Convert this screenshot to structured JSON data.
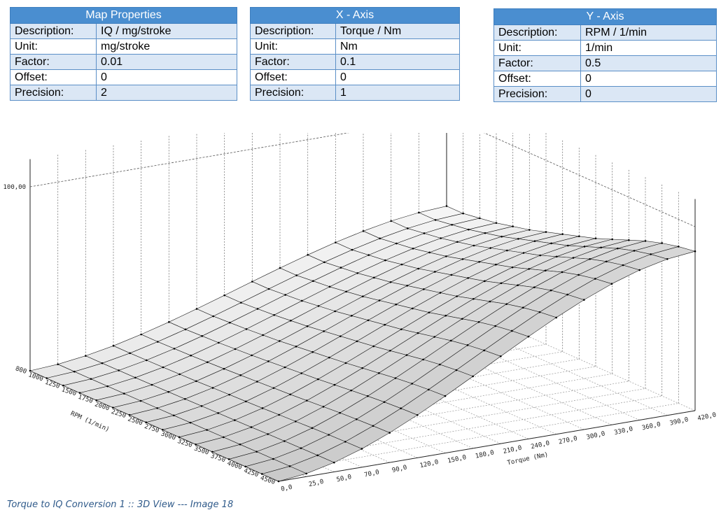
{
  "map_properties": {
    "title": "Map Properties",
    "rows": [
      {
        "key": "Description:",
        "value": "IQ /  mg/stroke"
      },
      {
        "key": "Unit:",
        "value": "mg/stroke"
      },
      {
        "key": "Factor:",
        "value": "0.01"
      },
      {
        "key": "Offset:",
        "value": "0"
      },
      {
        "key": "Precision:",
        "value": "2"
      }
    ]
  },
  "x_axis": {
    "title": "X - Axis",
    "rows": [
      {
        "key": "Description:",
        "value": "Torque / Nm"
      },
      {
        "key": "Unit:",
        "value": "Nm"
      },
      {
        "key": "Factor:",
        "value": "0.1"
      },
      {
        "key": "Offset:",
        "value": "0"
      },
      {
        "key": "Precision:",
        "value": "1"
      }
    ]
  },
  "y_axis": {
    "title": "Y - Axis",
    "rows": [
      {
        "key": "Description:",
        "value": "RPM / 1/min"
      },
      {
        "key": "Unit:",
        "value": "1/min"
      },
      {
        "key": "Factor:",
        "value": "0.5"
      },
      {
        "key": "Offset:",
        "value": "0"
      },
      {
        "key": "Precision:",
        "value": "0"
      }
    ]
  },
  "chart_data": {
    "type": "surface3d",
    "x_label": "Torque (Nm)",
    "y_label": "RPM (1/min)",
    "z_label": "100,00",
    "x_ticks": [
      "0,0",
      "25,0",
      "50,0",
      "70,0",
      "90,0",
      "120,0",
      "150,0",
      "180,0",
      "210,0",
      "240,0",
      "270,0",
      "300,0",
      "330,0",
      "360,0",
      "390,0",
      "420,0"
    ],
    "y_ticks": [
      "800",
      "1000",
      "1250",
      "1500",
      "1750",
      "2000",
      "2250",
      "2500",
      "2750",
      "3000",
      "3250",
      "3500",
      "3750",
      "4000",
      "4250",
      "4500"
    ],
    "z_ref": 100,
    "z_min": 0,
    "z_max": 115,
    "rpm_end_factor": [
      0.72,
      0.72,
      0.74,
      0.76,
      0.79,
      0.82,
      0.86,
      0.9,
      0.94,
      0.98,
      1.03,
      1.08,
      1.13,
      1.17,
      1.2,
      1.22
    ],
    "z_at_max_torque_end": 71,
    "surface_color": "#e6e6e6",
    "grid_color": "#1a1a1a"
  },
  "caption": "Torque to IQ Conversion 1 :: 3D View --- Image 18"
}
